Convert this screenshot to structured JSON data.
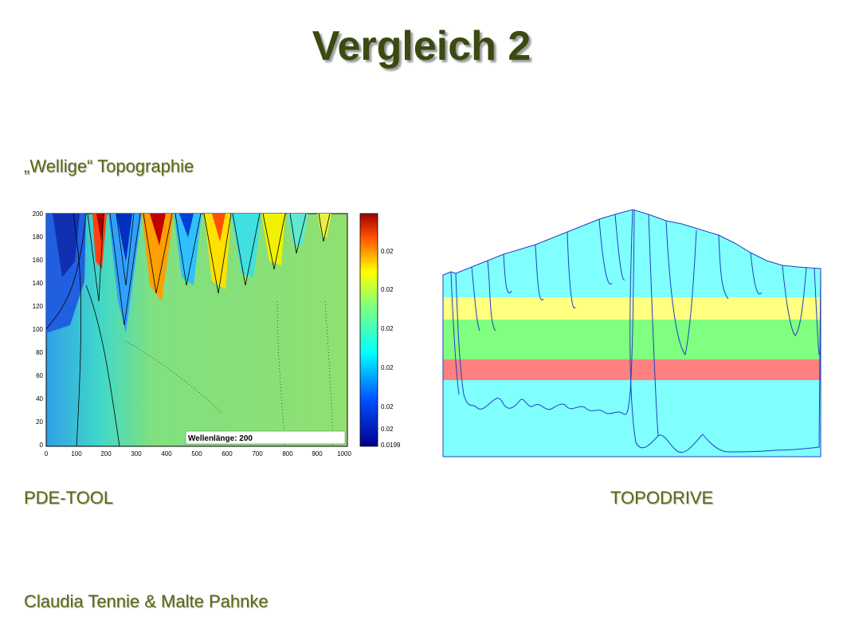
{
  "slide": {
    "title": "Vergleich 2",
    "subtitle": "„Wellige“ Topographie",
    "label_left": "PDE-TOOL",
    "label_right": "TOPODRIVE",
    "authors": "Claudia Tennie & Malte Pahnke"
  },
  "pde_plot": {
    "y_ticks": [
      "200",
      "180",
      "160",
      "140",
      "120",
      "100",
      "80",
      "60",
      "40",
      "20",
      "0"
    ],
    "x_ticks": [
      "0",
      "100",
      "200",
      "300",
      "400",
      "500",
      "600",
      "700",
      "800",
      "900",
      "1000"
    ],
    "colorbar_ticks": [
      "0.02",
      "0.02",
      "0.02",
      "0.02",
      "0.02",
      "0.02",
      "0.0199"
    ],
    "annotation": "Wellenlänge: 200"
  },
  "colors": {
    "title": "#3a4a10",
    "text": "#5a6a10",
    "topodrive_cyan": "#80ffff",
    "topodrive_yellow": "#ffff80",
    "topodrive_green": "#80ff80",
    "topodrive_red": "#ff8080"
  }
}
